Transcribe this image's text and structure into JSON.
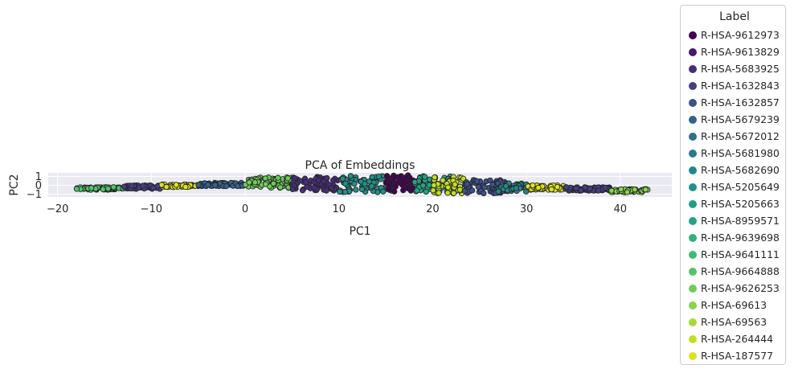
{
  "chart_data": {
    "type": "scatter",
    "title": "PCA of Embeddings",
    "xlabel": "PC1",
    "ylabel": "PC2",
    "xlim": [
      -21,
      45.5
    ],
    "ylim": [
      -1.3,
      1.4
    ],
    "xticks": [
      -20,
      -10,
      0,
      10,
      20,
      30,
      40
    ],
    "yticks": [
      -1,
      0,
      1
    ],
    "xtick_labels": [
      "−20",
      "−10",
      "0",
      "10",
      "20",
      "30",
      "40"
    ],
    "ytick_labels": [
      "−1",
      "0",
      "1"
    ],
    "grid": true,
    "legend": {
      "title": "Label",
      "placement": "outside-right",
      "entries": [
        {
          "name": "R-HSA-9612973",
          "color": "#440154"
        },
        {
          "name": "R-HSA-9613829",
          "color": "#46186e"
        },
        {
          "name": "R-HSA-5683925",
          "color": "#472d7b"
        },
        {
          "name": "R-HSA-1632843",
          "color": "#433e85"
        },
        {
          "name": "R-HSA-1632857",
          "color": "#3b518b"
        },
        {
          "name": "R-HSA-5679239",
          "color": "#34618d"
        },
        {
          "name": "R-HSA-5672012",
          "color": "#2d708e"
        },
        {
          "name": "R-HSA-5681980",
          "color": "#297b8e"
        },
        {
          "name": "R-HSA-5682690",
          "color": "#25858e"
        },
        {
          "name": "R-HSA-5205649",
          "color": "#21918c"
        },
        {
          "name": "R-HSA-5205663",
          "color": "#1f9e89"
        },
        {
          "name": "R-HSA-8959571",
          "color": "#21a685"
        },
        {
          "name": "R-HSA-9639698",
          "color": "#2db27d"
        },
        {
          "name": "R-HSA-9641111",
          "color": "#3dbc74"
        },
        {
          "name": "R-HSA-9664888",
          "color": "#52c569"
        },
        {
          "name": "R-HSA-9626253",
          "color": "#6ccd5a"
        },
        {
          "name": "R-HSA-69613",
          "color": "#86d549"
        },
        {
          "name": "R-HSA-69563",
          "color": "#a5db36"
        },
        {
          "name": "R-HSA-264444",
          "color": "#c2df23"
        },
        {
          "name": "R-HSA-187577",
          "color": "#dde318"
        }
      ]
    },
    "clusters": [
      {
        "label": "R-HSA-9664888",
        "x_range": [
          -18,
          -13
        ],
        "y_range": [
          -0.5,
          -0.2
        ]
      },
      {
        "label": "R-HSA-1632843",
        "x_range": [
          -13,
          -9
        ],
        "y_range": [
          -0.4,
          0.0
        ]
      },
      {
        "label": "R-HSA-187577",
        "x_range": [
          -9,
          -5
        ],
        "y_range": [
          -0.2,
          0.1
        ]
      },
      {
        "label": "R-HSA-5679239",
        "x_range": [
          -5,
          0
        ],
        "y_range": [
          -0.1,
          0.3
        ]
      },
      {
        "label": "R-HSA-9626253",
        "x_range": [
          0,
          5
        ],
        "y_range": [
          -0.3,
          0.9
        ]
      },
      {
        "label": "R-HSA-5683925",
        "x_range": [
          5,
          10
        ],
        "y_range": [
          -0.6,
          1.0
        ]
      },
      {
        "label": "R-HSA-5205649",
        "x_range": [
          10,
          16
        ],
        "y_range": [
          -0.8,
          1.1
        ]
      },
      {
        "label": "R-HSA-9612973",
        "x_range": [
          15,
          19
        ],
        "y_range": [
          -0.7,
          1.2
        ]
      },
      {
        "label": "R-HSA-8959571",
        "x_range": [
          18,
          22
        ],
        "y_range": [
          -0.8,
          1.1
        ]
      },
      {
        "label": "R-HSA-264444",
        "x_range": [
          20,
          23.5
        ],
        "y_range": [
          -0.9,
          1.0
        ]
      },
      {
        "label": "R-HSA-1632857",
        "x_range": [
          23,
          28
        ],
        "y_range": [
          -0.9,
          0.6
        ]
      },
      {
        "label": "R-HSA-5682690",
        "x_range": [
          27,
          30
        ],
        "y_range": [
          -0.7,
          0.3
        ]
      },
      {
        "label": "R-HSA-187577",
        "x_range": [
          30,
          34
        ],
        "y_range": [
          -0.5,
          0.0
        ]
      },
      {
        "label": "R-HSA-1632843",
        "x_range": [
          34,
          39
        ],
        "y_range": [
          -0.6,
          -0.2
        ]
      },
      {
        "label": "R-HSA-69613",
        "x_range": [
          39,
          43
        ],
        "y_range": [
          -0.8,
          -0.4
        ]
      }
    ]
  }
}
